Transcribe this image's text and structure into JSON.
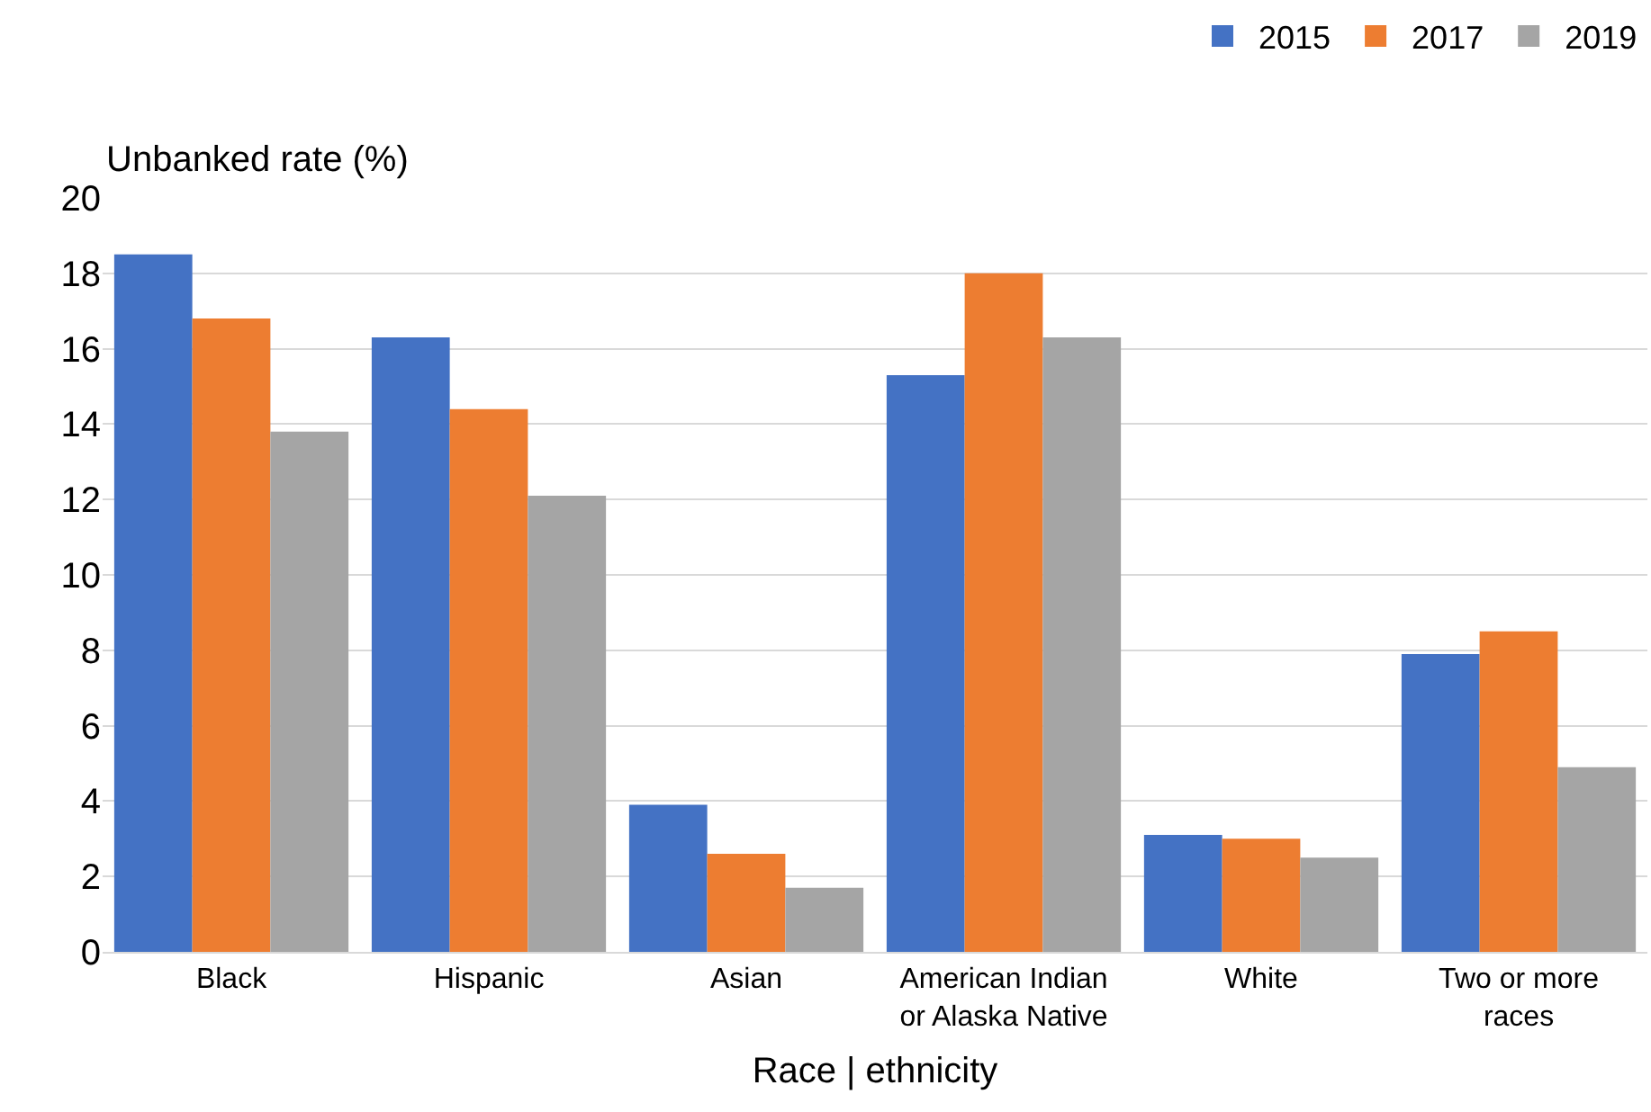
{
  "chart_data": {
    "type": "bar",
    "ylabel": "Unbanked rate (%)",
    "xlabel": "Race | ethnicity",
    "categories": [
      "Black",
      "Hispanic",
      "Asian",
      "American Indian or Alaska Native",
      "White",
      "Two or more races"
    ],
    "series": [
      {
        "name": "2015",
        "color": "#4472c4",
        "values": [
          18.5,
          16.3,
          3.9,
          15.3,
          3.1,
          7.9
        ]
      },
      {
        "name": "2017",
        "color": "#ed7d31",
        "values": [
          16.8,
          14.4,
          2.6,
          18.0,
          3.0,
          8.5
        ]
      },
      {
        "name": "2019",
        "color": "#a5a5a5",
        "values": [
          13.8,
          12.1,
          1.7,
          16.3,
          2.5,
          4.9
        ]
      }
    ],
    "ylim": [
      0,
      20
    ],
    "yticks": [
      0,
      2,
      4,
      6,
      8,
      10,
      12,
      14,
      16,
      18,
      20
    ],
    "grid": "y",
    "legend": "top right"
  }
}
